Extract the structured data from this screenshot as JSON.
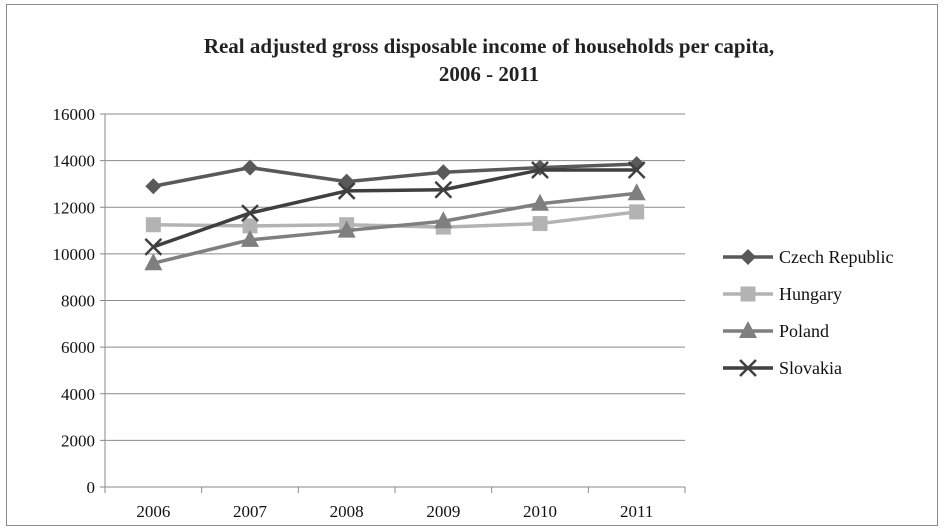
{
  "chart_data": {
    "type": "line",
    "title": "Real adjusted gross disposable income of households per capita,",
    "subtitle": "2006 - 2011",
    "xlabel": "",
    "ylabel": "",
    "categories": [
      "2006",
      "2007",
      "2008",
      "2009",
      "2010",
      "2011"
    ],
    "ylim": [
      0,
      16000
    ],
    "yticks": [
      "0",
      "2000",
      "4000",
      "6000",
      "8000",
      "10000",
      "12000",
      "14000",
      "16000"
    ],
    "grid": true,
    "legend_position": "right",
    "series": [
      {
        "name": "Czech Republic",
        "values": [
          12900,
          13700,
          13100,
          13500,
          13700,
          13850
        ],
        "color": "#595959",
        "marker": "diamond"
      },
      {
        "name": "Hungary",
        "values": [
          11250,
          11200,
          11250,
          11150,
          11300,
          11800
        ],
        "color": "#b3b3b3",
        "marker": "square"
      },
      {
        "name": "Poland",
        "values": [
          9600,
          10600,
          11000,
          11400,
          12150,
          12600
        ],
        "color": "#7f7f7f",
        "marker": "triangle"
      },
      {
        "name": "Slovakia",
        "values": [
          10300,
          11750,
          12700,
          12750,
          13600,
          13600
        ],
        "color": "#3f3f3f",
        "marker": "x"
      }
    ]
  }
}
